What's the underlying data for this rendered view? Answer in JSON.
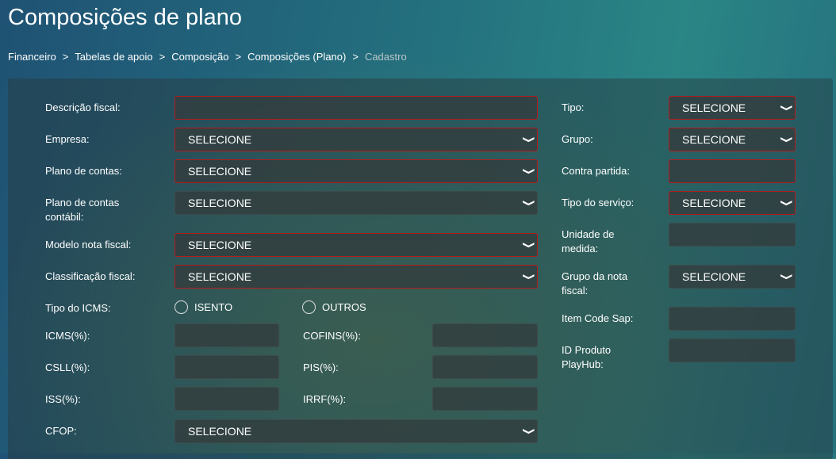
{
  "title": "Composições de plano",
  "breadcrumb": [
    "Financeiro",
    "Tabelas de apoio",
    "Composição",
    "Composições (Plano)",
    "Cadastro"
  ],
  "separator": ">",
  "left": {
    "descricao_fiscal": {
      "label": "Descrição fiscal:",
      "value": ""
    },
    "empresa": {
      "label": "Empresa:",
      "value": "SELECIONE"
    },
    "plano_contas": {
      "label": "Plano de contas:",
      "value": "SELECIONE"
    },
    "plano_contas_contabil": {
      "label1": "Plano de contas",
      "label2": "contábil:",
      "value": "SELECIONE"
    },
    "modelo_nf": {
      "label": "Modelo nota fiscal:",
      "value": "SELECIONE"
    },
    "classificacao": {
      "label": "Classificação fiscal:",
      "value": "SELECIONE"
    },
    "tipo_icms": {
      "label": "Tipo do ICMS:",
      "options": [
        "ISENTO",
        "OUTROS"
      ]
    },
    "icms": {
      "label": "ICMS(%):",
      "value": ""
    },
    "cofins": {
      "label": "COFINS(%):",
      "value": ""
    },
    "csll": {
      "label": "CSLL(%):",
      "value": ""
    },
    "pis": {
      "label": "PIS(%):",
      "value": ""
    },
    "iss": {
      "label": "ISS(%):",
      "value": ""
    },
    "irrf": {
      "label": "IRRF(%):",
      "value": ""
    },
    "cfop": {
      "label": "CFOP:",
      "value": "SELECIONE"
    }
  },
  "right": {
    "tipo": {
      "label": "Tipo:",
      "value": "SELECIONE"
    },
    "grupo": {
      "label": "Grupo:",
      "value": "SELECIONE"
    },
    "contra_partida": {
      "label": "Contra partida:",
      "value": ""
    },
    "tipo_servico": {
      "label": "Tipo do serviço:",
      "value": "SELECIONE"
    },
    "unidade": {
      "label1": "Unidade de",
      "label2": "medida:",
      "value": ""
    },
    "grupo_nf": {
      "label1": "Grupo da nota",
      "label2": "fiscal:",
      "value": "SELECIONE"
    },
    "item_code": {
      "label": "Item Code Sap:",
      "value": ""
    },
    "id_produto": {
      "label1": "ID Produto",
      "label2": "PlayHub:",
      "value": ""
    }
  },
  "colors": {
    "required_border": "#b31b1b"
  }
}
